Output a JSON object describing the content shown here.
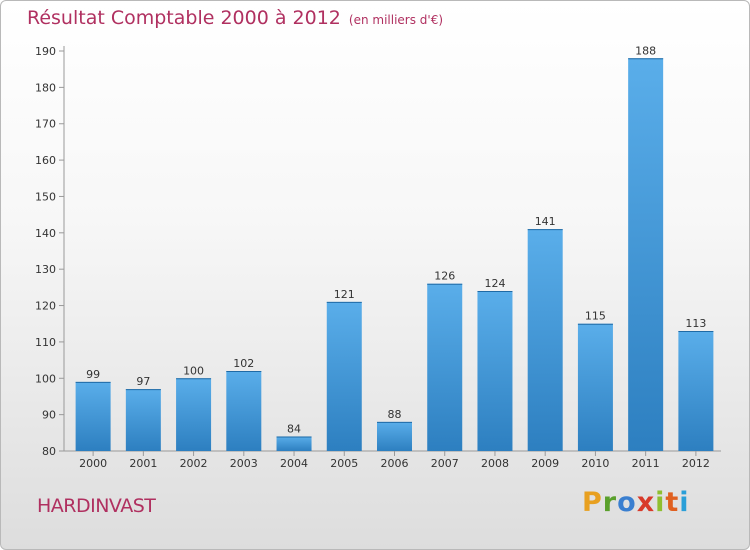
{
  "chart_data": {
    "type": "bar",
    "title": "Résultat Comptable 2000 à 2012",
    "subtitle": "(en milliers d'€)",
    "categories": [
      "2000",
      "2001",
      "2002",
      "2003",
      "2004",
      "2005",
      "2006",
      "2007",
      "2008",
      "2009",
      "2010",
      "2011",
      "2012"
    ],
    "values": [
      99,
      97,
      100,
      102,
      84,
      121,
      88,
      126,
      124,
      141,
      115,
      188,
      113
    ],
    "ylim": [
      80,
      190
    ],
    "yticks": [
      80,
      90,
      100,
      110,
      120,
      130,
      140,
      150,
      160,
      170,
      180,
      190
    ],
    "grid": false,
    "bar_color": "#3a93d8"
  },
  "footer": {
    "commune": "HARDINVAST",
    "logo_text": "Proxiti",
    "logo_colors": [
      "#e8a020",
      "#5aa02c",
      "#3a7fd0",
      "#d83a2a",
      "#8fbf30",
      "#e06020",
      "#2a9fd8"
    ]
  }
}
